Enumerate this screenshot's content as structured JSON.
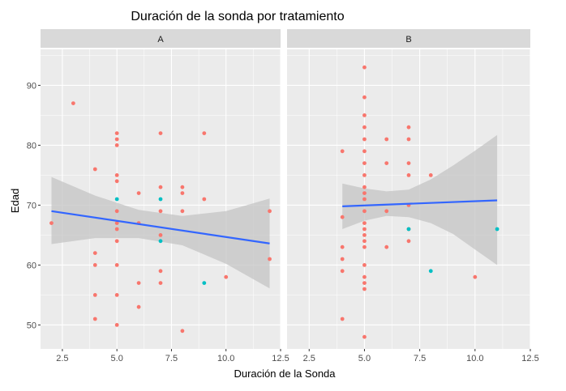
{
  "chart_data": {
    "type": "scatter",
    "title": "Duración de la sonda por tratamiento",
    "xlabel": "Duración de la Sonda",
    "ylabel": "Edad",
    "xlim": [
      1.5,
      12.5
    ],
    "ylim": [
      46,
      96
    ],
    "x_ticks": [
      2.5,
      5.0,
      7.5,
      10.0,
      12.5
    ],
    "x_tick_labels": [
      "2.5",
      "5.0",
      "7.5",
      "10.0",
      "12.5"
    ],
    "y_ticks": [
      50,
      60,
      70,
      80,
      90
    ],
    "y_tick_labels": [
      "50",
      "60",
      "70",
      "80",
      "90"
    ],
    "colors": {
      "panel_bg": "#ebebeb",
      "strip_bg": "#d9d9d9",
      "grid": "#ffffff",
      "group1": "#f8766d",
      "group2": "#00bfc4",
      "fit_line": "#3366ff",
      "ribbon": "#c4c4c4"
    },
    "panels": [
      {
        "label": "A",
        "points_group1": [
          [
            2,
            67
          ],
          [
            3,
            87
          ],
          [
            4,
            76
          ],
          [
            4,
            62
          ],
          [
            4,
            60
          ],
          [
            4,
            55
          ],
          [
            4,
            51
          ],
          [
            5,
            82
          ],
          [
            5,
            81
          ],
          [
            5,
            80
          ],
          [
            5,
            75
          ],
          [
            5,
            74
          ],
          [
            5,
            69
          ],
          [
            5,
            67
          ],
          [
            5,
            66
          ],
          [
            5,
            64
          ],
          [
            5,
            60
          ],
          [
            5,
            55
          ],
          [
            5,
            50
          ],
          [
            6,
            72
          ],
          [
            6,
            67
          ],
          [
            6,
            57
          ],
          [
            6,
            53
          ],
          [
            7,
            82
          ],
          [
            7,
            73
          ],
          [
            7,
            69
          ],
          [
            7,
            65
          ],
          [
            7,
            59
          ],
          [
            7,
            57
          ],
          [
            8,
            73
          ],
          [
            8,
            72
          ],
          [
            8,
            69
          ],
          [
            8,
            49
          ],
          [
            9,
            82
          ],
          [
            9,
            71
          ],
          [
            10,
            58
          ],
          [
            12,
            69
          ],
          [
            12,
            61
          ]
        ],
        "points_group2": [
          [
            5,
            71
          ],
          [
            7,
            71
          ],
          [
            7,
            64
          ],
          [
            9,
            57
          ]
        ],
        "fit": {
          "x": [
            2,
            12
          ],
          "y": [
            69.0,
            63.6
          ]
        },
        "ribbon": {
          "x": [
            2,
            4,
            6,
            8,
            10,
            12
          ],
          "lower": [
            63.5,
            64.5,
            64.5,
            63.3,
            60.2,
            56.1
          ],
          "upper": [
            74.7,
            71.6,
            69.2,
            68.2,
            69.0,
            71.1
          ]
        }
      },
      {
        "label": "B",
        "points_group1": [
          [
            4,
            79
          ],
          [
            4,
            68
          ],
          [
            4,
            63
          ],
          [
            4,
            61
          ],
          [
            4,
            59
          ],
          [
            4,
            51
          ],
          [
            5,
            93
          ],
          [
            5,
            88
          ],
          [
            5,
            85
          ],
          [
            5,
            83
          ],
          [
            5,
            81
          ],
          [
            5,
            79
          ],
          [
            5,
            77
          ],
          [
            5,
            75
          ],
          [
            5,
            73
          ],
          [
            5,
            72
          ],
          [
            5,
            71
          ],
          [
            5,
            69
          ],
          [
            5,
            67
          ],
          [
            5,
            66
          ],
          [
            5,
            65
          ],
          [
            5,
            64
          ],
          [
            5,
            63
          ],
          [
            5,
            60
          ],
          [
            5,
            58
          ],
          [
            5,
            57
          ],
          [
            5,
            56
          ],
          [
            5,
            48
          ],
          [
            6,
            81
          ],
          [
            6,
            77
          ],
          [
            6,
            69
          ],
          [
            6,
            63
          ],
          [
            7,
            83
          ],
          [
            7,
            81
          ],
          [
            7,
            77
          ],
          [
            7,
            75
          ],
          [
            7,
            70
          ],
          [
            7,
            66
          ],
          [
            7,
            64
          ],
          [
            8,
            75
          ],
          [
            10,
            58
          ]
        ],
        "points_group2": [
          [
            7,
            66
          ],
          [
            8,
            59
          ],
          [
            11,
            66
          ]
        ],
        "fit": {
          "x": [
            4,
            11
          ],
          "y": [
            69.8,
            70.8
          ]
        },
        "ribbon": {
          "x": [
            4,
            5,
            6,
            7,
            8,
            9,
            10,
            11
          ],
          "lower": [
            66.0,
            67.4,
            68.2,
            68.0,
            67.0,
            65.2,
            62.6,
            60.0
          ],
          "upper": [
            73.6,
            72.8,
            72.3,
            72.6,
            74.3,
            76.6,
            79.1,
            81.7
          ]
        }
      }
    ]
  }
}
